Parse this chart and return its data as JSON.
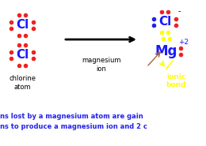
{
  "bg_color": "#ffffff",
  "cl_symbol": "Cl",
  "mg_symbol": "Mg",
  "cl_color": "#1a1aff",
  "mg_color": "#1a1aff",
  "dot_red": "#ee2222",
  "dot_blue": "#2222ee",
  "dot_yellow": "#ffff00",
  "chlorine_label": "chlorine\natom",
  "magnesium_label": "magnesium\nion",
  "ionic_label": "ionic\nbond",
  "bottom_text1": "ns lost by a magnesium atom are gain",
  "bottom_text2": "ns to produce a magnesium ion and 2 c",
  "bottom_text_color": "#2222ee",
  "plus2_text": "+2",
  "minus_text": "-"
}
